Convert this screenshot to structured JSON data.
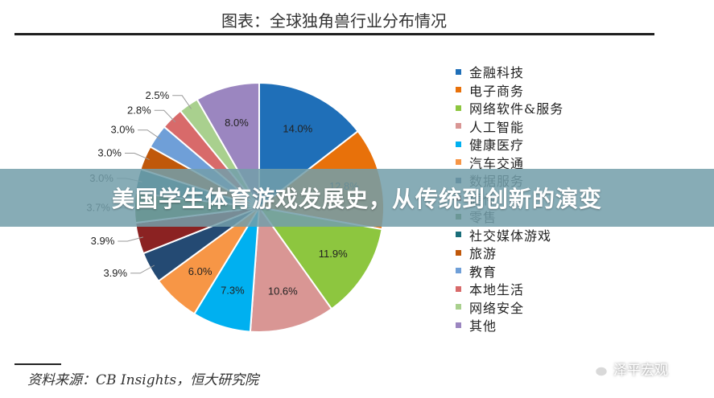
{
  "banner": {
    "text": "美国学生体育游戏发展史，从传统到创新的演变"
  },
  "source": "资料来源：CB Insights，恒大研究院",
  "watermark": {
    "text": "泽平宏观",
    "icon": "wechat-icon"
  },
  "chart_data": {
    "type": "pie",
    "title": "图表：全球独角兽行业分布情况",
    "legend_position": "right",
    "start": "12 o'clock, clockwise",
    "slices": [
      {
        "label": "金融科技",
        "value": 14.0,
        "value_label": "14.0%",
        "color": "#1f6fb8"
      },
      {
        "label": "电子商务",
        "value": 12.8,
        "value_label": "12.8%",
        "color": "#e8710a"
      },
      {
        "label": "网络软件&服务",
        "value": 11.9,
        "value_label": "11.9%",
        "color": "#8dc63f"
      },
      {
        "label": "人工智能",
        "value": 10.6,
        "value_label": "10.6%",
        "color": "#d99694"
      },
      {
        "label": "健康医疗",
        "value": 7.3,
        "value_label": "7.3%",
        "color": "#00b0f0"
      },
      {
        "label": "汽车交通",
        "value": 6.0,
        "value_label": "6.0%",
        "color": "#f79646"
      },
      {
        "label": "数据服务",
        "value": 3.9,
        "value_label": "3.9%",
        "color": "#244a73"
      },
      {
        "label": "硬件",
        "value": 3.9,
        "value_label": "3.9%",
        "color": "#8b2222"
      },
      {
        "label": "零售",
        "value": 3.7,
        "value_label": "3.7%",
        "color": "#3d6b1f"
      },
      {
        "label": "社交媒体游戏",
        "value": 3.0,
        "value_label": "3.0%",
        "color": "#1a6e7a"
      },
      {
        "label": "旅游",
        "value": 3.0,
        "value_label": "3.0%",
        "color": "#c0580a"
      },
      {
        "label": "教育",
        "value": 3.0,
        "value_label": "3.0%",
        "color": "#6f9fd8"
      },
      {
        "label": "本地生活",
        "value": 2.8,
        "value_label": "2.8%",
        "color": "#d86a6a"
      },
      {
        "label": "网络安全",
        "value": 2.5,
        "value_label": "2.5%",
        "color": "#a9d08e"
      },
      {
        "label": "其他",
        "value": 8.0,
        "value_label": "8.0%",
        "color": "#9b86c0"
      }
    ]
  }
}
